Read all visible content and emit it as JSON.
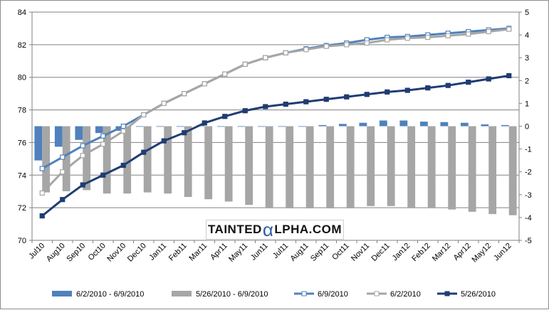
{
  "chart_data": {
    "type": "bar+line",
    "title": "",
    "xlabel": "",
    "ylabel": "",
    "ylabel_right": "",
    "ylim": [
      70,
      84
    ],
    "y2lim": [
      -5,
      5
    ],
    "yticks": [
      70,
      72,
      74,
      76,
      78,
      80,
      82,
      84
    ],
    "y2ticks": [
      -5,
      -4,
      -3,
      -2,
      -1,
      0,
      1,
      2,
      3,
      4,
      5
    ],
    "grid": "horizontal",
    "legend_position": "bottom",
    "categories": [
      "Jul10",
      "Aug10",
      "Sep10",
      "Oct10",
      "Nov10",
      "Dec10",
      "Jan11",
      "Feb11",
      "Mar11",
      "Apr11",
      "May11",
      "Jun11",
      "Jul11",
      "Aug11",
      "Sep11",
      "Oct11",
      "Nov11",
      "Dec11",
      "Jan12",
      "Feb12",
      "Mar12",
      "Apr12",
      "May12",
      "Jun12"
    ],
    "bar_series": [
      {
        "name": "6/2/2010 - 6/9/2010",
        "axis": "right",
        "color": "#4f81bd",
        "values": [
          -1.5,
          -0.9,
          -0.6,
          -0.3,
          -0.2,
          0.0,
          0.0,
          0.0,
          0.05,
          0.0,
          0.0,
          0.0,
          0.0,
          0.0,
          0.05,
          0.1,
          0.15,
          0.25,
          0.25,
          0.2,
          0.18,
          0.15,
          0.08,
          0.05
        ]
      },
      {
        "name": "5/26/2010 - 6/9/2010",
        "axis": "right",
        "color": "#a6a6a6",
        "values": [
          -2.9,
          -2.85,
          -2.8,
          -2.95,
          -2.95,
          -2.9,
          -2.95,
          -3.1,
          -3.2,
          -3.3,
          -3.45,
          -3.55,
          -3.6,
          -3.6,
          -3.6,
          -3.6,
          -3.5,
          -3.5,
          -3.55,
          -3.55,
          -3.65,
          -3.75,
          -3.85,
          -3.9
        ]
      }
    ],
    "line_series": [
      {
        "name": "6/9/2010",
        "axis": "left",
        "color": "#4f81bd",
        "values": [
          74.4,
          75.1,
          75.8,
          76.4,
          77.0,
          77.7,
          78.4,
          79.0,
          79.6,
          80.2,
          80.8,
          81.2,
          81.5,
          81.75,
          81.95,
          82.1,
          82.3,
          82.45,
          82.5,
          82.6,
          82.7,
          82.8,
          82.9,
          83.0
        ]
      },
      {
        "name": "6/2/2010",
        "axis": "left",
        "color": "#a6a6a6",
        "values": [
          72.9,
          74.2,
          75.2,
          75.9,
          76.7,
          77.7,
          78.4,
          79.0,
          79.6,
          80.2,
          80.8,
          81.2,
          81.5,
          81.7,
          81.9,
          82.0,
          82.1,
          82.3,
          82.4,
          82.45,
          82.55,
          82.65,
          82.8,
          82.95
        ]
      },
      {
        "name": "5/26/2010",
        "axis": "left",
        "color": "#1f3d73",
        "values": [
          71.5,
          72.5,
          73.4,
          74.0,
          74.6,
          75.4,
          76.1,
          76.6,
          77.2,
          77.6,
          77.95,
          78.2,
          78.35,
          78.5,
          78.65,
          78.8,
          78.95,
          79.1,
          79.2,
          79.35,
          79.5,
          79.7,
          79.9,
          80.1
        ]
      }
    ]
  },
  "watermark": {
    "part1": "TAINTED",
    "alpha": "α",
    "part2": "LPHA.COM"
  }
}
